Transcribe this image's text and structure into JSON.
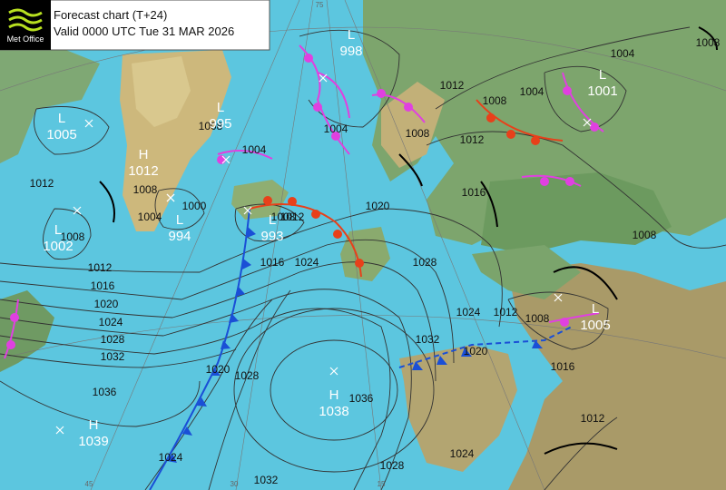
{
  "header": {
    "logo": "Met Office",
    "title": "Forecast chart (T+24)",
    "valid": "Valid 0000 UTC Tue 31 MAR 2026"
  },
  "pressure_centres": [
    {
      "type": "L",
      "value": 1005
    },
    {
      "type": "H",
      "value": 1012
    },
    {
      "type": "L",
      "value": 995
    },
    {
      "type": "L",
      "value": 998
    },
    {
      "type": "L",
      "value": 1001
    },
    {
      "type": "L",
      "value": 994
    },
    {
      "type": "L",
      "value": 993
    },
    {
      "type": "L",
      "value": 1002
    },
    {
      "type": "H",
      "value": 1038
    },
    {
      "type": "H",
      "value": 1039
    },
    {
      "type": "L",
      "value": 1005
    }
  ],
  "isobar_labels": [
    1012,
    1008,
    1012,
    1016,
    1020,
    1024,
    1028,
    1032,
    1036,
    1008,
    1004,
    1000,
    1008,
    1004,
    1008,
    1012,
    1016,
    1024,
    1020,
    1028,
    1004,
    1008,
    1012,
    1008,
    1004,
    1012,
    1016,
    1008,
    1004,
    1008,
    1012,
    1008,
    1024,
    1020,
    1032,
    1016,
    1012,
    1024,
    1028,
    1032,
    1036,
    1028,
    1020,
    1024
  ],
  "graticule_labels": [
    "75",
    "45",
    "30",
    "15"
  ]
}
